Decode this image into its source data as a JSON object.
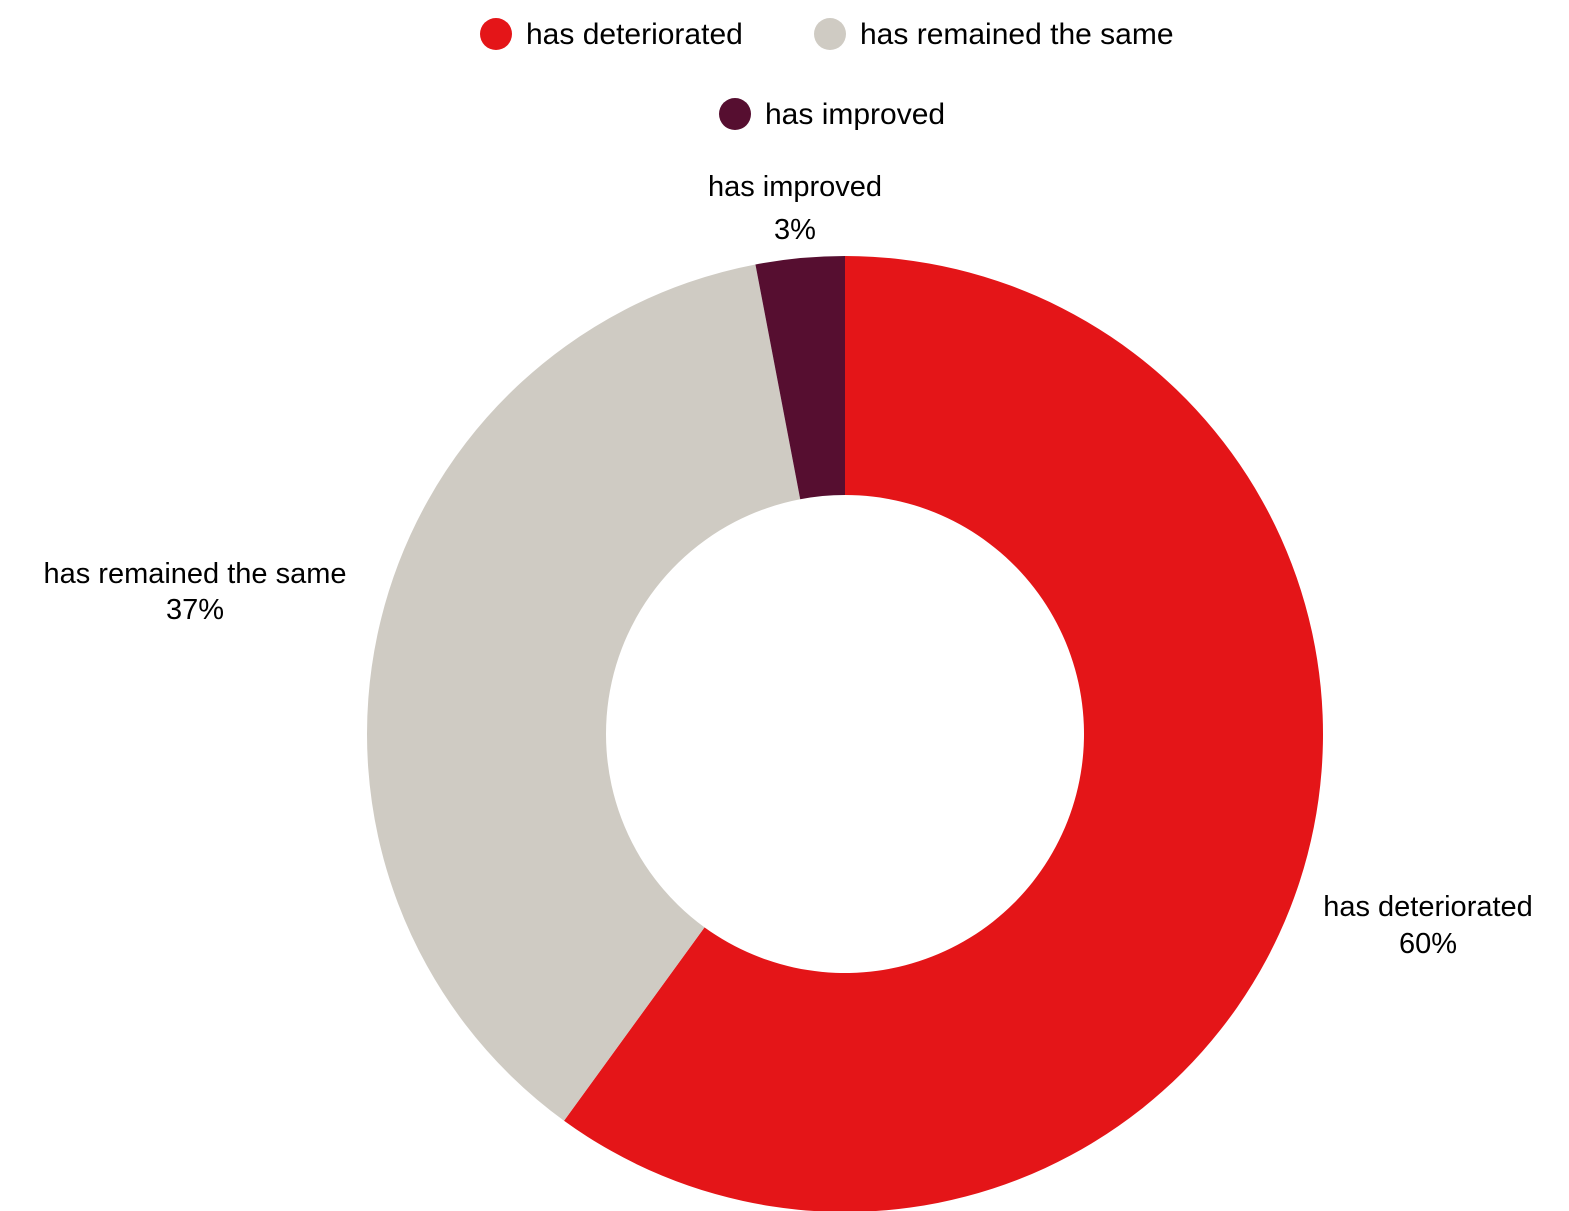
{
  "chart_data": {
    "type": "pie",
    "variant": "donut",
    "slices": [
      {
        "label": "has deteriorated",
        "value": 60,
        "value_label": "60%",
        "color": "#e41518"
      },
      {
        "label": "has remained the same",
        "value": 37,
        "value_label": "37%",
        "color": "#cfcbc3"
      },
      {
        "label": "has improved",
        "value": 3,
        "value_label": "3%",
        "color": "#560e30"
      }
    ],
    "legend": {
      "placement": "top",
      "entries": [
        "has deteriorated",
        "has remained the same",
        "has improved"
      ]
    },
    "data_labels": "outside",
    "start": "top",
    "direction": "clockwise"
  }
}
